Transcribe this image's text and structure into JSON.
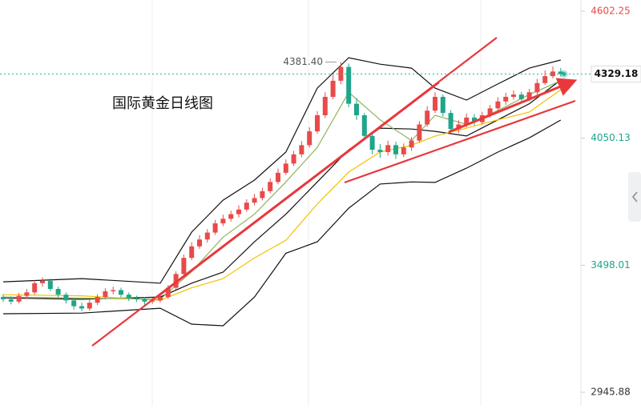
{
  "chart_data": {
    "type": "candlestick",
    "title": "国际黄金日线图",
    "ylim": [
      2887,
      4651
    ],
    "yticks": [
      4602.25,
      4050.13,
      3498.01,
      2945.88
    ],
    "ytick_colors": [
      "#e84a4a",
      "#1fa58a",
      "#1fa58a",
      "#333333"
    ],
    "up_color": "#e84a4a",
    "down_color": "#1fa58a",
    "last_price": 4329.18,
    "annotation": {
      "value": 4381.4,
      "label": "4381.40"
    },
    "candles": [
      [
        3360,
        3372,
        3338,
        3350
      ],
      [
        3350,
        3362,
        3328,
        3340
      ],
      [
        3340,
        3378,
        3332,
        3365
      ],
      [
        3365,
        3395,
        3352,
        3380
      ],
      [
        3380,
        3432,
        3370,
        3420
      ],
      [
        3420,
        3445,
        3405,
        3430
      ],
      [
        3430,
        3440,
        3385,
        3395
      ],
      [
        3395,
        3405,
        3358,
        3370
      ],
      [
        3370,
        3380,
        3332,
        3345
      ],
      [
        3345,
        3352,
        3305,
        3320
      ],
      [
        3320,
        3335,
        3298,
        3310
      ],
      [
        3310,
        3348,
        3300,
        3335
      ],
      [
        3335,
        3372,
        3325,
        3360
      ],
      [
        3360,
        3398,
        3350,
        3385
      ],
      [
        3385,
        3405,
        3372,
        3390
      ],
      [
        3390,
        3400,
        3358,
        3370
      ],
      [
        3370,
        3380,
        3342,
        3355
      ],
      [
        3355,
        3366,
        3338,
        3350
      ],
      [
        3350,
        3360,
        3326,
        3340
      ],
      [
        3340,
        3358,
        3330,
        3345
      ],
      [
        3345,
        3372,
        3336,
        3360
      ],
      [
        3360,
        3412,
        3352,
        3400
      ],
      [
        3400,
        3472,
        3392,
        3460
      ],
      [
        3460,
        3545,
        3452,
        3530
      ],
      [
        3530,
        3598,
        3520,
        3580
      ],
      [
        3580,
        3628,
        3570,
        3610
      ],
      [
        3610,
        3655,
        3596,
        3640
      ],
      [
        3640,
        3695,
        3630,
        3680
      ],
      [
        3680,
        3718,
        3668,
        3700
      ],
      [
        3700,
        3735,
        3688,
        3720
      ],
      [
        3720,
        3758,
        3705,
        3740
      ],
      [
        3740,
        3785,
        3730,
        3770
      ],
      [
        3770,
        3808,
        3758,
        3790
      ],
      [
        3790,
        3835,
        3780,
        3820
      ],
      [
        3820,
        3875,
        3810,
        3860
      ],
      [
        3860,
        3918,
        3850,
        3900
      ],
      [
        3900,
        3958,
        3890,
        3940
      ],
      [
        3940,
        3995,
        3930,
        3980
      ],
      [
        3980,
        4038,
        3968,
        4020
      ],
      [
        4020,
        4098,
        4010,
        4080
      ],
      [
        4080,
        4168,
        4070,
        4150
      ],
      [
        4150,
        4250,
        4138,
        4230
      ],
      [
        4230,
        4325,
        4220,
        4300
      ],
      [
        4300,
        4381.4,
        4285,
        4360
      ],
      [
        4360,
        4375,
        4185,
        4200
      ],
      [
        4200,
        4225,
        4130,
        4150
      ],
      [
        4150,
        4160,
        4040,
        4060
      ],
      [
        4060,
        4075,
        3980,
        4000
      ],
      [
        4000,
        4025,
        3965,
        3990
      ],
      [
        3990,
        4040,
        3975,
        4020
      ],
      [
        4020,
        4035,
        3960,
        3980
      ],
      [
        3980,
        4028,
        3968,
        4010
      ],
      [
        4010,
        4055,
        3995,
        4040
      ],
      [
        4040,
        4125,
        4030,
        4110
      ],
      [
        4110,
        4190,
        4100,
        4170
      ],
      [
        4170,
        4250,
        4160,
        4230
      ],
      [
        4230,
        4240,
        4145,
        4160
      ],
      [
        4160,
        4172,
        4075,
        4090
      ],
      [
        4090,
        4128,
        4072,
        4110
      ],
      [
        4110,
        4158,
        4098,
        4140
      ],
      [
        4140,
        4155,
        4105,
        4120
      ],
      [
        4120,
        4165,
        4110,
        4150
      ],
      [
        4150,
        4195,
        4140,
        4180
      ],
      [
        4180,
        4228,
        4170,
        4210
      ],
      [
        4210,
        4248,
        4195,
        4230
      ],
      [
        4230,
        4258,
        4218,
        4240
      ],
      [
        4240,
        4252,
        4208,
        4220
      ],
      [
        4220,
        4265,
        4212,
        4250
      ],
      [
        4250,
        4308,
        4240,
        4290
      ],
      [
        4290,
        4345,
        4282,
        4320
      ],
      [
        4320,
        4362,
        4310,
        4340
      ],
      [
        4340,
        4355,
        4318,
        4329.18
      ]
    ],
    "lines": [
      {
        "color": "#111111",
        "x": [
          0,
          10,
          20,
          24,
          28,
          32,
          36,
          40,
          44,
          48,
          52,
          55,
          59,
          63,
          67,
          71
        ],
        "values": [
          3426,
          3440,
          3420,
          3642,
          3781,
          3868,
          3990,
          4268,
          4400,
          4372,
          4355,
          4268,
          4216,
          4286,
          4355,
          4390
        ]
      },
      {
        "color": "#111111",
        "x": [
          0,
          10,
          20,
          24,
          28,
          32,
          36,
          40,
          44,
          48,
          52,
          55,
          59,
          63,
          67,
          71
        ],
        "values": [
          3356,
          3350,
          3360,
          3420,
          3468,
          3600,
          3720,
          3860,
          4000,
          4094,
          4090,
          4080,
          4060,
          4130,
          4200,
          4303
        ]
      },
      {
        "color": "#111111",
        "x": [
          0,
          10,
          20,
          24,
          28,
          32,
          36,
          40,
          44,
          48,
          52,
          55,
          59,
          63,
          67,
          71
        ],
        "values": [
          3287,
          3290,
          3311,
          3242,
          3235,
          3360,
          3550,
          3600,
          3746,
          3851,
          3860,
          3858,
          3920,
          3990,
          4052,
          4129
        ]
      },
      {
        "color": "#f2c200",
        "x": [
          0,
          10,
          20,
          24,
          28,
          32,
          36,
          40,
          44,
          48,
          52,
          55,
          59,
          63,
          67,
          71
        ],
        "values": [
          3370,
          3365,
          3346,
          3400,
          3440,
          3530,
          3607,
          3764,
          3903,
          3990,
          4020,
          4059,
          4094,
          4130,
          4164,
          4261
        ]
      },
      {
        "color": "#8fb35a",
        "x": [
          0,
          10,
          20,
          24,
          28,
          32,
          36,
          40,
          44,
          48,
          52,
          55,
          59,
          63,
          67,
          71
        ],
        "values": [
          3360,
          3355,
          3350,
          3470,
          3620,
          3720,
          3860,
          4010,
          4250,
          4130,
          4040,
          4150,
          4110,
          4170,
          4240,
          4300
        ]
      }
    ]
  }
}
